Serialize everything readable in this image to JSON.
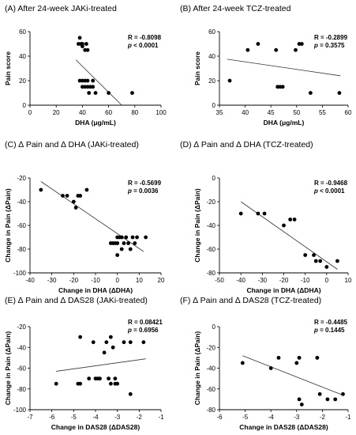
{
  "chart_data": [
    {
      "id": "A",
      "title": "(A) After 24-week JAKi-treated",
      "type": "scatter",
      "xlabel": "DHA (μg/mL)",
      "ylabel": "Pain score",
      "xlim": [
        0,
        100
      ],
      "ylim": [
        0,
        60
      ],
      "xticks": [
        0,
        20,
        40,
        60,
        80,
        100
      ],
      "yticks": [
        0,
        20,
        40,
        60
      ],
      "stat_r": "R = -0.8098",
      "stat_p": "p < 0.0001",
      "points": [
        [
          37,
          50
        ],
        [
          39,
          50
        ],
        [
          40,
          50
        ],
        [
          38,
          55
        ],
        [
          42,
          45
        ],
        [
          44,
          45
        ],
        [
          40,
          48
        ],
        [
          43,
          50
        ],
        [
          38,
          20
        ],
        [
          40,
          20
        ],
        [
          42,
          20
        ],
        [
          44,
          20
        ],
        [
          48,
          20
        ],
        [
          40,
          15
        ],
        [
          42,
          15
        ],
        [
          44,
          15
        ],
        [
          46,
          15
        ],
        [
          48,
          15
        ],
        [
          45,
          10
        ],
        [
          50,
          10
        ],
        [
          60,
          10
        ],
        [
          78,
          10
        ]
      ],
      "fit": [
        [
          35,
          37
        ],
        [
          70,
          0
        ]
      ]
    },
    {
      "id": "B",
      "title": "(B) After 24-week TCZ-treated",
      "type": "scatter",
      "xlabel": "DHA (μg/mL)",
      "ylabel": "Pain score",
      "xlim": [
        35,
        60
      ],
      "ylim": [
        0,
        60
      ],
      "xticks": [
        35,
        40,
        45,
        50,
        55,
        60
      ],
      "yticks": [
        0,
        20,
        40,
        60
      ],
      "stat_r": "R = -0.2899",
      "stat_p": "p = 0.3575",
      "points": [
        [
          37,
          20
        ],
        [
          40.5,
          45
        ],
        [
          42.5,
          50
        ],
        [
          46,
          45
        ],
        [
          46.3,
          15
        ],
        [
          46.8,
          15
        ],
        [
          47.3,
          15
        ],
        [
          49.8,
          45
        ],
        [
          50.5,
          50
        ],
        [
          51,
          50
        ],
        [
          52.7,
          10
        ],
        [
          58.3,
          10
        ]
      ],
      "fit": [
        [
          36.5,
          37.5
        ],
        [
          58.5,
          24
        ]
      ]
    },
    {
      "id": "C",
      "title": "(C) ∆ Pain and ∆ DHA (JAKi-treated)",
      "type": "scatter",
      "xlabel": "Change in DHA (ΔDHA)",
      "ylabel": "Change in Pain (ΔPain)",
      "xlim": [
        -40,
        20
      ],
      "ylim": [
        -100,
        -20
      ],
      "xticks": [
        -40,
        -30,
        -20,
        -10,
        0,
        10,
        20
      ],
      "yticks": [
        -100,
        -80,
        -60,
        -40,
        -20
      ],
      "stat_r": "R = -0.5699",
      "stat_p": "p = 0.0036",
      "points": [
        [
          -35,
          -30
        ],
        [
          -25,
          -35
        ],
        [
          -23,
          -35
        ],
        [
          -20,
          -40
        ],
        [
          -19,
          -45
        ],
        [
          -18,
          -35
        ],
        [
          -17,
          -35
        ],
        [
          -14,
          -30
        ],
        [
          -3,
          -75
        ],
        [
          -2,
          -75
        ],
        [
          -1,
          -75
        ],
        [
          0,
          -70
        ],
        [
          0,
          -75
        ],
        [
          0,
          -85
        ],
        [
          1,
          -70
        ],
        [
          2,
          -70
        ],
        [
          2,
          -80
        ],
        [
          3,
          -75
        ],
        [
          4,
          -70
        ],
        [
          5,
          -75
        ],
        [
          6,
          -80
        ],
        [
          7,
          -70
        ],
        [
          8,
          -75
        ],
        [
          9,
          -70
        ],
        [
          13,
          -70
        ]
      ],
      "fit": [
        [
          -35,
          -23
        ],
        [
          12,
          -82
        ]
      ]
    },
    {
      "id": "D",
      "title": "(D) ∆ Pain and ∆ DHA (TCZ-treated)",
      "type": "scatter",
      "xlabel": "Change in DHA (ΔDHA)",
      "ylabel": "Change in Pain (ΔPain)",
      "xlim": [
        -50,
        10
      ],
      "ylim": [
        -80,
        0
      ],
      "xticks": [
        -50,
        -40,
        -30,
        -20,
        -10,
        0,
        10
      ],
      "yticks": [
        -80,
        -60,
        -40,
        -20,
        0
      ],
      "stat_r": "R = -0.9468",
      "stat_p": "p < 0.0001",
      "points": [
        [
          -40,
          -30
        ],
        [
          -32,
          -30
        ],
        [
          -29,
          -30
        ],
        [
          -20,
          -40
        ],
        [
          -17,
          -35
        ],
        [
          -15,
          -35
        ],
        [
          -10,
          -65
        ],
        [
          -6,
          -65
        ],
        [
          -5,
          -70
        ],
        [
          -3,
          -70
        ],
        [
          0,
          -75
        ],
        [
          5,
          -70
        ]
      ],
      "fit": [
        [
          -40,
          -20
        ],
        [
          5,
          -77
        ]
      ]
    },
    {
      "id": "E",
      "title": "(E) ∆ Pain and ∆ DAS28 (JAKi-treated)",
      "type": "scatter",
      "xlabel": "Change in DAS28 (ΔDAS28)",
      "ylabel": "Change in Pain (ΔPain)",
      "xlim": [
        -7,
        -1
      ],
      "ylim": [
        -100,
        -20
      ],
      "xticks": [
        -7,
        -6,
        -5,
        -4,
        -3,
        -2,
        -1
      ],
      "yticks": [
        -100,
        -80,
        -60,
        -40,
        -20
      ],
      "stat_r": "R = 0.08421",
      "stat_p": "p = 0.6956",
      "points": [
        [
          -5.8,
          -75
        ],
        [
          -4.8,
          -75
        ],
        [
          -4.7,
          -75
        ],
        [
          -4.7,
          -30
        ],
        [
          -4.3,
          -70
        ],
        [
          -4.1,
          -35
        ],
        [
          -4,
          -70
        ],
        [
          -3.9,
          -70
        ],
        [
          -3.8,
          -70
        ],
        [
          -3.6,
          -45
        ],
        [
          -3.5,
          -35
        ],
        [
          -3.4,
          -70
        ],
        [
          -3.3,
          -30
        ],
        [
          -3.3,
          -75
        ],
        [
          -3.2,
          -40
        ],
        [
          -3.1,
          -70
        ],
        [
          -3.1,
          -75
        ],
        [
          -3,
          -75
        ],
        [
          -2.7,
          -35
        ],
        [
          -2.4,
          -85
        ],
        [
          -2.4,
          -35
        ],
        [
          -1.8,
          -35
        ]
      ],
      "fit": [
        [
          -5.8,
          -63
        ],
        [
          -1.7,
          -51
        ]
      ]
    },
    {
      "id": "F",
      "title": "(F) ∆ Pain and ∆ DAS28 (TCZ-treated)",
      "type": "scatter",
      "xlabel": "Change in DAS28 (ΔDAS28)",
      "ylabel": "Change in Pain (ΔPain)",
      "xlim": [
        -6,
        -1
      ],
      "ylim": [
        -80,
        0
      ],
      "xticks": [
        -6,
        -5,
        -4,
        -3,
        -2,
        -1
      ],
      "yticks": [
        -80,
        -60,
        -40,
        -20,
        0
      ],
      "stat_r": "R = -0.4485",
      "stat_p": "p = 0.1445",
      "points": [
        [
          -5.1,
          -35
        ],
        [
          -4,
          -40
        ],
        [
          -3.7,
          -30
        ],
        [
          -3,
          -35
        ],
        [
          -2.9,
          -30
        ],
        [
          -2.9,
          -70
        ],
        [
          -2.8,
          -75
        ],
        [
          -2.2,
          -30
        ],
        [
          -2.1,
          -65
        ],
        [
          -1.8,
          -70
        ],
        [
          -1.5,
          -70
        ],
        [
          -1.2,
          -65
        ]
      ],
      "fit": [
        [
          -5.1,
          -28
        ],
        [
          -1.2,
          -66
        ]
      ]
    }
  ]
}
